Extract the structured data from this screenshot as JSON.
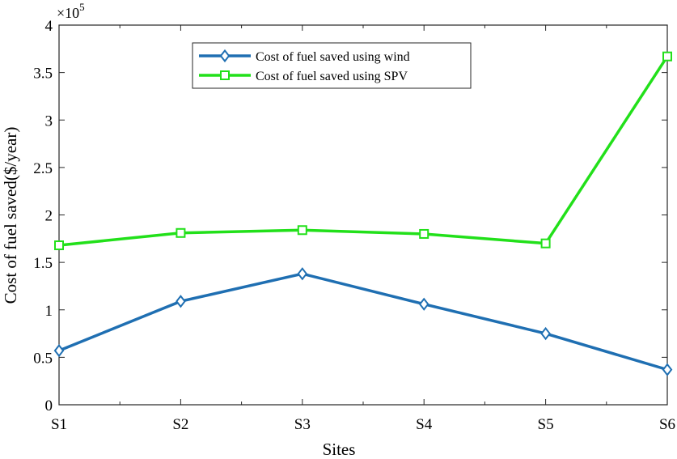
{
  "chart_data": {
    "type": "line",
    "title": "",
    "xlabel": "Sites",
    "ylabel": "Cost of fuel saved($/year)",
    "y_exponent_label": "×10",
    "y_exponent_power": "5",
    "categories": [
      "S1",
      "S2",
      "S3",
      "S4",
      "S5",
      "S6"
    ],
    "ylim": [
      0,
      4
    ],
    "yticks": [
      {
        "value": 0,
        "label": "0"
      },
      {
        "value": 0.5,
        "label": "0.5"
      },
      {
        "value": 1,
        "label": "1"
      },
      {
        "value": 1.5,
        "label": "1.5"
      },
      {
        "value": 2,
        "label": "2"
      },
      {
        "value": 2.5,
        "label": "2.5"
      },
      {
        "value": 3,
        "label": "3"
      },
      {
        "value": 3.5,
        "label": "3.5"
      },
      {
        "value": 4,
        "label": "4"
      }
    ],
    "legend_position": "top-center",
    "grid": false,
    "series": [
      {
        "name": "Cost of fuel saved using wind",
        "color": "#1f6fb2",
        "marker": "diamond",
        "values": [
          0.57,
          1.09,
          1.38,
          1.06,
          0.75,
          0.37
        ]
      },
      {
        "name": "Cost of fuel saved using SPV",
        "color": "#22e01a",
        "marker": "square",
        "values": [
          1.68,
          1.81,
          1.84,
          1.8,
          1.7,
          3.67
        ]
      }
    ]
  }
}
